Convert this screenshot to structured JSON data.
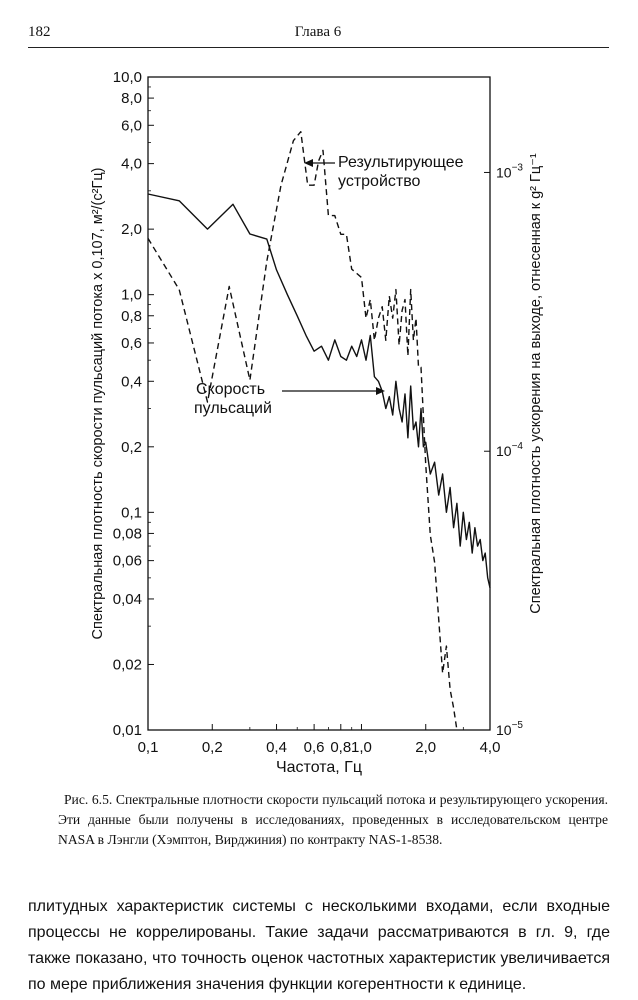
{
  "header": {
    "page_number": "182",
    "chapter": "Глава 6"
  },
  "figure": {
    "caption": "Рис. 6.5. Спектральные плотности скорости пульсаций потока и результирующего ускорения. Эти данные были получены в исследованиях, проведенных в исследовательском центре NASA в Лэнгли (Хэмптон, Вирджиния) по контракту NAS-1-8538."
  },
  "chart_data": {
    "type": "line",
    "title": "",
    "xlabel": "Частота, Гц",
    "ylabel": "Спектральная плотность скорости пульсаций потока x 0,107, м²/(с²Гц)",
    "y2label": "Спектральная плотность ускорения на выходе, отнесенная к g² Гц⁻¹",
    "x_scale": "log",
    "y_scale": "log",
    "xlim": [
      0.1,
      4.0
    ],
    "ylim": [
      0.01,
      10.0
    ],
    "y2lim": [
      1e-05,
      0.0022
    ],
    "x_ticks": [
      0.1,
      0.2,
      0.4,
      0.6,
      0.8,
      1.0,
      2.0,
      4.0
    ],
    "x_tick_labels": [
      "0,1",
      "0,2",
      "0,4",
      "0,6",
      "0,8",
      "1,0",
      "2,0",
      "4,0"
    ],
    "y_ticks": [
      0.01,
      0.02,
      0.04,
      0.06,
      0.08,
      0.1,
      0.2,
      0.4,
      0.6,
      0.8,
      1.0,
      2.0,
      4.0,
      6.0,
      8.0,
      10.0
    ],
    "y_tick_labels": [
      "0,01",
      "0,02",
      "0,04",
      "0,06",
      "0,08",
      "0,1",
      "0,2",
      "0,4",
      "0,6",
      "0,8",
      "1,0",
      "2,0",
      "4,0",
      "6,0",
      "8,0",
      "10,0"
    ],
    "y2_ticks": [
      0.001,
      0.0001,
      1e-05
    ],
    "y2_tick_labels": [
      {
        "base": "10",
        "exp": "−3"
      },
      {
        "base": "10",
        "exp": "−4"
      },
      {
        "base": "10",
        "exp": "−5"
      }
    ],
    "annotations": [
      {
        "label": "Результирующее устройство",
        "lines": [
          "Результирующее",
          "устройство"
        ]
      },
      {
        "label": "Скорость пульсаций",
        "lines": [
          "Скорость",
          "пульсаций"
        ]
      }
    ],
    "series": [
      {
        "name": "Скорость пульсаций",
        "style": "solid",
        "x": [
          0.1,
          0.14,
          0.19,
          0.25,
          0.3,
          0.36,
          0.4,
          0.45,
          0.5,
          0.55,
          0.6,
          0.65,
          0.7,
          0.75,
          0.8,
          0.85,
          0.9,
          0.95,
          1.0,
          1.05,
          1.1,
          1.15,
          1.2,
          1.25,
          1.3,
          1.35,
          1.4,
          1.45,
          1.5,
          1.55,
          1.6,
          1.65,
          1.7,
          1.75,
          1.8,
          1.85,
          1.9,
          1.95,
          2.0,
          2.1,
          2.2,
          2.3,
          2.4,
          2.5,
          2.6,
          2.7,
          2.8,
          2.9,
          3.0,
          3.1,
          3.2,
          3.3,
          3.4,
          3.5,
          3.6,
          3.7,
          3.8,
          3.9,
          4.0
        ],
        "values": [
          2.9,
          2.7,
          2.0,
          2.6,
          1.9,
          1.8,
          1.3,
          1.0,
          0.8,
          0.65,
          0.55,
          0.58,
          0.5,
          0.62,
          0.52,
          0.5,
          0.58,
          0.52,
          0.62,
          0.5,
          0.65,
          0.42,
          0.4,
          0.36,
          0.3,
          0.34,
          0.28,
          0.4,
          0.3,
          0.26,
          0.35,
          0.22,
          0.38,
          0.24,
          0.26,
          0.2,
          0.3,
          0.2,
          0.21,
          0.15,
          0.17,
          0.12,
          0.15,
          0.1,
          0.13,
          0.085,
          0.11,
          0.07,
          0.1,
          0.075,
          0.09,
          0.065,
          0.085,
          0.07,
          0.075,
          0.06,
          0.065,
          0.05,
          0.045
        ]
      },
      {
        "name": "Результирующее устройство",
        "style": "dashed",
        "x": [
          0.1,
          0.14,
          0.19,
          0.24,
          0.3,
          0.36,
          0.42,
          0.48,
          0.52,
          0.56,
          0.6,
          0.63,
          0.66,
          0.7,
          0.75,
          0.8,
          0.85,
          0.9,
          1.0,
          1.05,
          1.1,
          1.15,
          1.2,
          1.25,
          1.3,
          1.35,
          1.4,
          1.45,
          1.5,
          1.55,
          1.6,
          1.65,
          1.7,
          1.75,
          1.8,
          1.85,
          1.9,
          2.0,
          2.1,
          2.2,
          2.3,
          2.4,
          2.5,
          2.6,
          2.7,
          2.8
        ],
        "values": [
          0.00058,
          0.00038,
          0.00015,
          0.00039,
          0.00018,
          0.00048,
          0.0009,
          0.0013,
          0.0014,
          0.0009,
          0.0009,
          0.0011,
          0.0012,
          0.0007,
          0.0007,
          0.0006,
          0.0006,
          0.00045,
          0.00042,
          0.0003,
          0.00035,
          0.00025,
          0.0003,
          0.00033,
          0.00025,
          0.00036,
          0.0003,
          0.00038,
          0.00024,
          0.00032,
          0.00035,
          0.00022,
          0.00038,
          0.00025,
          0.0003,
          0.0002,
          0.0002,
          9e-05,
          5e-05,
          4e-05,
          2.5e-05,
          1.6e-05,
          2e-05,
          1.4e-05,
          1.2e-05,
          1e-05
        ]
      }
    ]
  },
  "body": {
    "paragraph": "плитудных характеристик системы с несколькими входами, если входные процессы не коррелированы. Такие задачи рассматриваются в гл. 9, где также показано, что точность оценок частотных характеристик увеличивается по мере приближения значения функции когерентности к единице."
  }
}
